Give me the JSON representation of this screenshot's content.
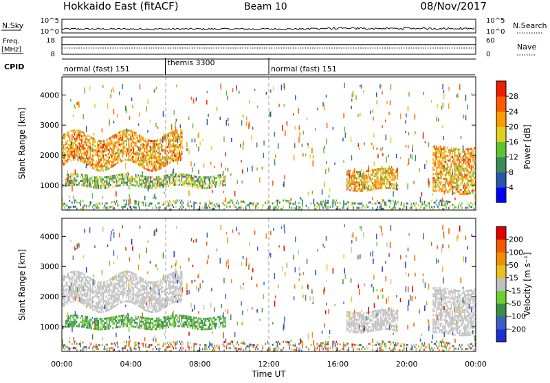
{
  "header": {
    "title": "Hokkaido East (fitACF)",
    "beam": "Beam 10",
    "date": "08/Nov/2017"
  },
  "strip_noise": {
    "label": "N.Sky",
    "left_ticks": [
      "10^5",
      "10^0"
    ],
    "right_ticks": [
      "10^5",
      "10^0"
    ],
    "right_label": "N.Search"
  },
  "strip_freq": {
    "label_top": "Freq.",
    "label_unit": "[MHz]",
    "left_ticks": [
      "18",
      "8"
    ],
    "right_ticks": [
      "60",
      "0"
    ],
    "right_label": "Nave"
  },
  "strip_cpid": {
    "label": "CPID",
    "segments": [
      {
        "name": "normal (fast) 151",
        "start_h": 0,
        "end_h": 6
      },
      {
        "name": "themis 3300",
        "start_h": 6,
        "end_h": 12
      },
      {
        "name": "normal (fast) 151",
        "start_h": 12,
        "end_h": 24
      }
    ]
  },
  "colors": {
    "power_scale": [
      "#0000ff",
      "#2a55aa",
      "#3a8a5a",
      "#5cc42e",
      "#e0d020",
      "#ff9a00",
      "#ff5a00",
      "#ee1c00"
    ],
    "velocity_scale": [
      "#1a2fd0",
      "#3a60c0",
      "#3a9040",
      "#6ad030",
      "#c0c0c0",
      "#e8c020",
      "#f09000",
      "#f05a00",
      "#e00000"
    ]
  },
  "chart_data": [
    {
      "type": "heatmap",
      "title": "",
      "xlabel": "",
      "ylabel": "Slant Range [km]",
      "xlim_hours": [
        0,
        24
      ],
      "ylim_km": [
        180,
        4600
      ],
      "y_ticks": [
        "1000",
        "2000",
        "3000",
        "4000"
      ],
      "colorbar": {
        "label": "Power [dB]",
        "ticks": [
          "4",
          "8",
          "12",
          "16",
          "20",
          "24",
          "28"
        ],
        "range": [
          0,
          30
        ]
      },
      "echo_regions": [
        {
          "name": "main-band",
          "t_start_h": 0,
          "t_end_h": 7.0,
          "range_low_km": 1700,
          "range_high_km": 2700,
          "power_db": 28
        },
        {
          "name": "low-band",
          "t_start_h": 0.2,
          "t_end_h": 9.5,
          "range_low_km": 1000,
          "range_high_km": 1400,
          "power_db": 20
        },
        {
          "name": "evening-echo",
          "t_start_h": 16.5,
          "t_end_h": 19.5,
          "range_low_km": 900,
          "range_high_km": 1600,
          "power_db": 26
        },
        {
          "name": "late-descending",
          "t_start_h": 21.5,
          "t_end_h": 24,
          "range_low_km": 800,
          "range_high_km": 2300,
          "power_db": 27
        },
        {
          "name": "ground-scatter",
          "t_start_h": 0,
          "t_end_h": 24,
          "range_low_km": 200,
          "range_high_km": 500,
          "power_db": 18
        }
      ]
    },
    {
      "type": "heatmap",
      "title": "",
      "xlabel": "Time UT",
      "ylabel": "Slant Range [km]",
      "xlim_hours": [
        0,
        24
      ],
      "ylim_km": [
        180,
        4600
      ],
      "y_ticks": [
        "1000",
        "2000",
        "3000",
        "4000"
      ],
      "x_ticks": [
        "00:00",
        "04:00",
        "08:00",
        "12:00",
        "16:00",
        "20:00",
        "00:00"
      ],
      "colorbar": {
        "label": "Velocity [m s⁻¹]",
        "ticks": [
          "200",
          "100",
          "50",
          "15",
          "-15",
          "-50",
          "-100",
          "-200"
        ],
        "range": [
          -250,
          250
        ]
      }
    }
  ]
}
